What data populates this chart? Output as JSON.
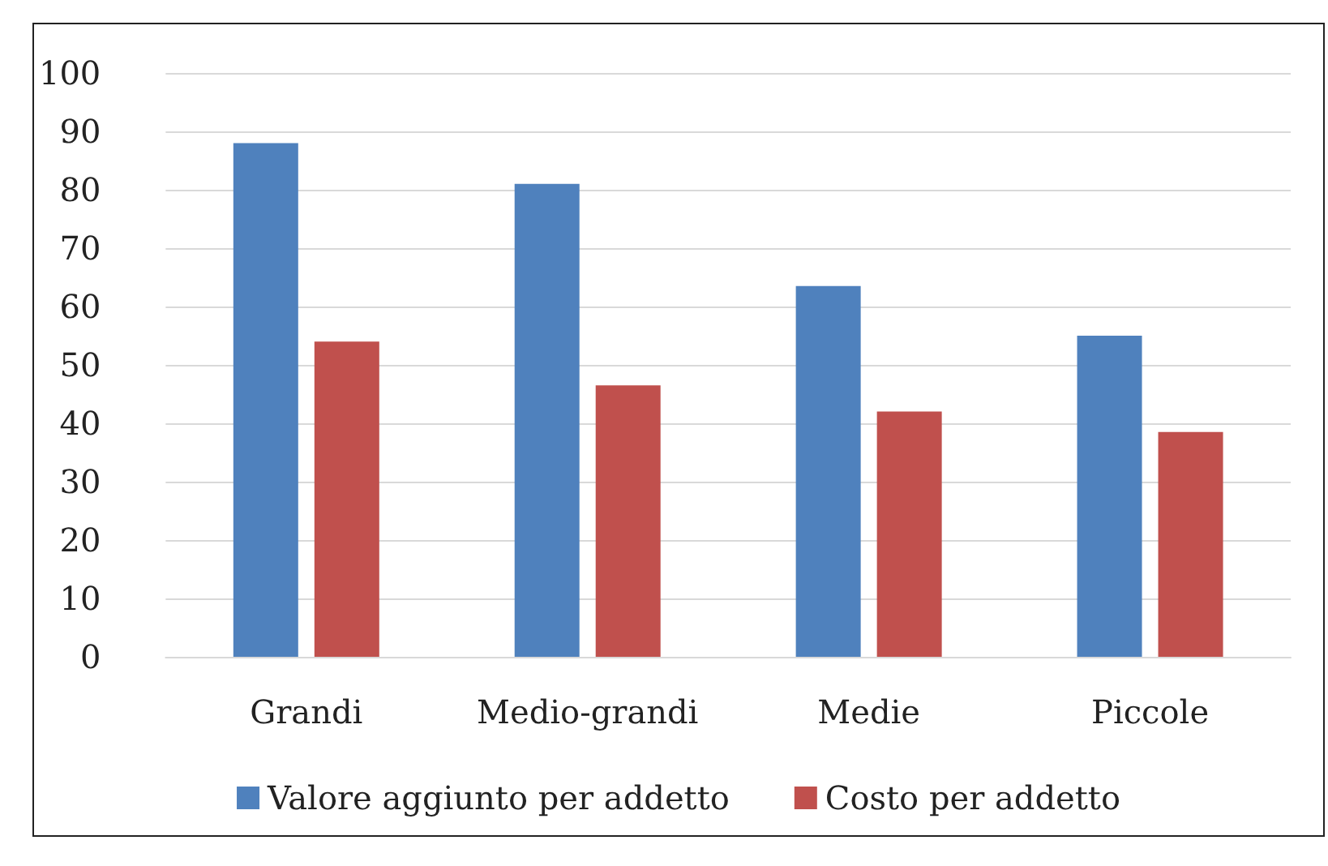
{
  "chart_data": {
    "type": "bar",
    "categories": [
      "Grandi",
      "Medio-grandi",
      "Medie",
      "Piccole"
    ],
    "series": [
      {
        "name": "Valore aggiunto per addetto",
        "color": "#4f81bd",
        "values": [
          88,
          81,
          63.5,
          55
        ]
      },
      {
        "name": "Costo per addetto",
        "color": "#c0504d",
        "values": [
          54,
          46.5,
          42,
          38.5
        ]
      }
    ],
    "ylim": [
      0,
      100
    ],
    "yticks": [
      0,
      10,
      20,
      30,
      40,
      50,
      60,
      70,
      80,
      90,
      100
    ],
    "grid": "y",
    "legend": "bottom"
  }
}
